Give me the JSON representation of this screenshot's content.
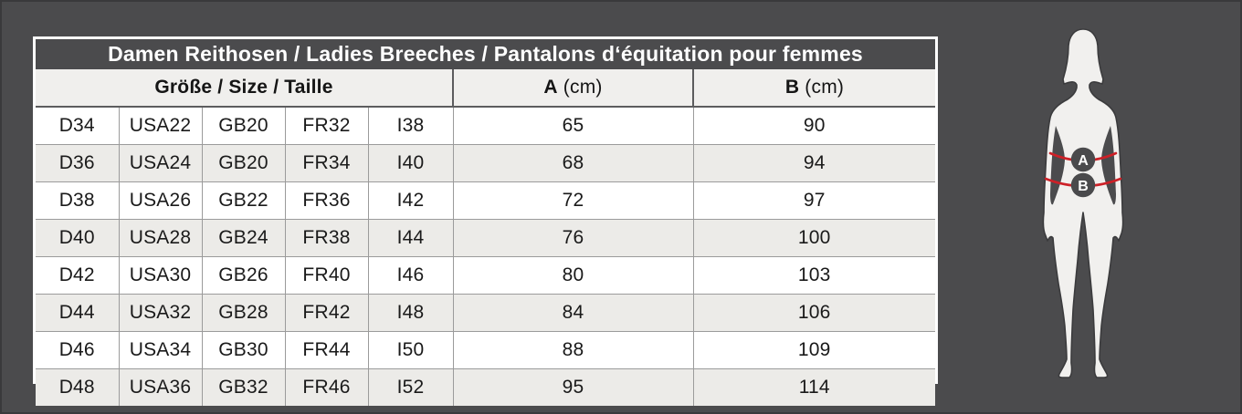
{
  "title_bar": {
    "text": "Damen Reithosen / Ladies Breeches / Pantalons d‘équitation pour femmes"
  },
  "size_table": {
    "header": {
      "size_group_label": "Größe / Size / Taille",
      "col_a_letter": "A",
      "col_a_unit": " (cm)",
      "col_b_letter": "B",
      "col_b_unit": " (cm)"
    },
    "columns": [
      "de",
      "usa",
      "gb",
      "fr",
      "it",
      "a_cm",
      "b_cm"
    ],
    "rows": [
      [
        "D34",
        "USA22",
        "GB20",
        "FR32",
        "I38",
        "65",
        "90"
      ],
      [
        "D36",
        "USA24",
        "GB20",
        "FR34",
        "I40",
        "68",
        "94"
      ],
      [
        "D38",
        "USA26",
        "GB22",
        "FR36",
        "I42",
        "72",
        "97"
      ],
      [
        "D40",
        "USA28",
        "GB24",
        "FR38",
        "I44",
        "76",
        "100"
      ],
      [
        "D42",
        "USA30",
        "GB26",
        "FR40",
        "I46",
        "80",
        "103"
      ],
      [
        "D44",
        "USA32",
        "GB28",
        "FR42",
        "I48",
        "84",
        "106"
      ],
      [
        "D46",
        "USA34",
        "GB30",
        "FR44",
        "I50",
        "88",
        "109"
      ],
      [
        "D48",
        "USA36",
        "GB32",
        "FR46",
        "I52",
        "95",
        "114"
      ]
    ]
  },
  "figure": {
    "marker_a_label": "A",
    "marker_b_label": "B",
    "colors": {
      "background": "#4b4b4d",
      "silhouette_fill": "#f1f0ee",
      "silhouette_stroke": "#3b3b3d",
      "measure_line": "#cd2027",
      "badge_fill": "#4a4a4c",
      "badge_text": "#ffffff"
    }
  }
}
